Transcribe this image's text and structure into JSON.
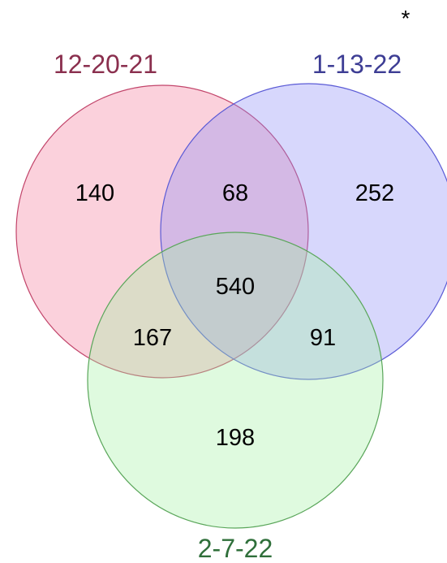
{
  "corner_mark": "*",
  "sets": [
    {
      "label": "12-20-21",
      "fill": "#f47a9c",
      "stroke": "#c2456b",
      "label_color": "#8a2f4e"
    },
    {
      "label": "1-13-22",
      "fill": "#8c8cf5",
      "stroke": "#5b5bd6",
      "label_color": "#3d3d94"
    },
    {
      "label": "2-7-22",
      "fill": "#a3f1a3",
      "stroke": "#5aa65a",
      "label_color": "#2f6f3a"
    }
  ],
  "fill_opacity": 0.35,
  "regions": {
    "only_12_20_21": "140",
    "only_1_13_22": "252",
    "only_2_7_22": "198",
    "12_20_21_and_1_13_22": "68",
    "12_20_21_and_2_7_22": "167",
    "1_13_22_and_2_7_22": "91",
    "all_three": "540"
  }
}
